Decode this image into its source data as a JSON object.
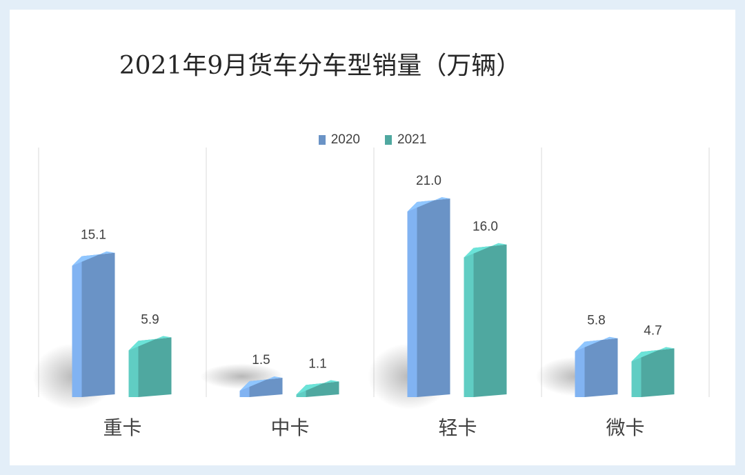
{
  "chart_data": {
    "type": "bar",
    "title": "2021年9月货车分车型销量（万辆）",
    "categories": [
      "重卡",
      "中卡",
      "轻卡",
      "微卡"
    ],
    "series": [
      {
        "name": "2020",
        "values": [
          15.1,
          1.5,
          21.0,
          5.8
        ],
        "color": "#6a93c6"
      },
      {
        "name": "2021",
        "values": [
          5.9,
          1.1,
          16.0,
          4.7
        ],
        "color": "#4fa8a0"
      }
    ],
    "value_labels": [
      [
        "15.1",
        "1.5",
        "21.0",
        "5.8"
      ],
      [
        "5.9",
        "1.1",
        "16.0",
        "4.7"
      ]
    ],
    "xlabel": "",
    "ylabel": "",
    "ylim": [
      0,
      22
    ],
    "grid": false,
    "legend_position": "top-center"
  },
  "colors": {
    "background": "#e3eef8",
    "panel": "#ffffff",
    "divider": "#d9d9d9"
  }
}
